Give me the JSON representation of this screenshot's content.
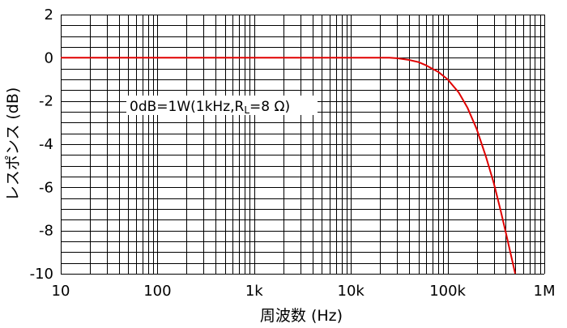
{
  "chart_data": {
    "type": "line",
    "xscale": "log",
    "xlim": [
      10,
      1000000
    ],
    "ylim": [
      -10,
      2
    ],
    "grid": true,
    "xlabel": "周波数 (Hz)",
    "ylabel": "レスポンス (dB)",
    "xtick_labels": [
      "10",
      "100",
      "1k",
      "10k",
      "100k",
      "1M"
    ],
    "xtick_values": [
      10,
      100,
      1000,
      10000,
      100000,
      1000000
    ],
    "ytick_labels": [
      "2",
      "0",
      "-2",
      "-4",
      "-6",
      "-8",
      "-10"
    ],
    "ytick_values": [
      2,
      0,
      -2,
      -4,
      -6,
      -8,
      -10
    ],
    "annotation": {
      "text_main": "0dB=1W(1kHz,R",
      "text_sub": "L",
      "text_end": "=8 Ω)"
    },
    "series": [
      {
        "color": "#e00000",
        "x": [
          10,
          100,
          1000,
          10000,
          25000,
          30000,
          40000,
          50000,
          60000,
          80000,
          100000,
          130000,
          160000,
          200000,
          250000,
          300000,
          350000,
          400000,
          450000,
          500000
        ],
        "y": [
          0,
          0,
          0,
          0,
          0,
          -0.02,
          -0.1,
          -0.2,
          -0.35,
          -0.65,
          -1.0,
          -1.6,
          -2.3,
          -3.3,
          -4.6,
          -5.8,
          -7.0,
          -8.1,
          -9.1,
          -10.0
        ]
      }
    ]
  }
}
